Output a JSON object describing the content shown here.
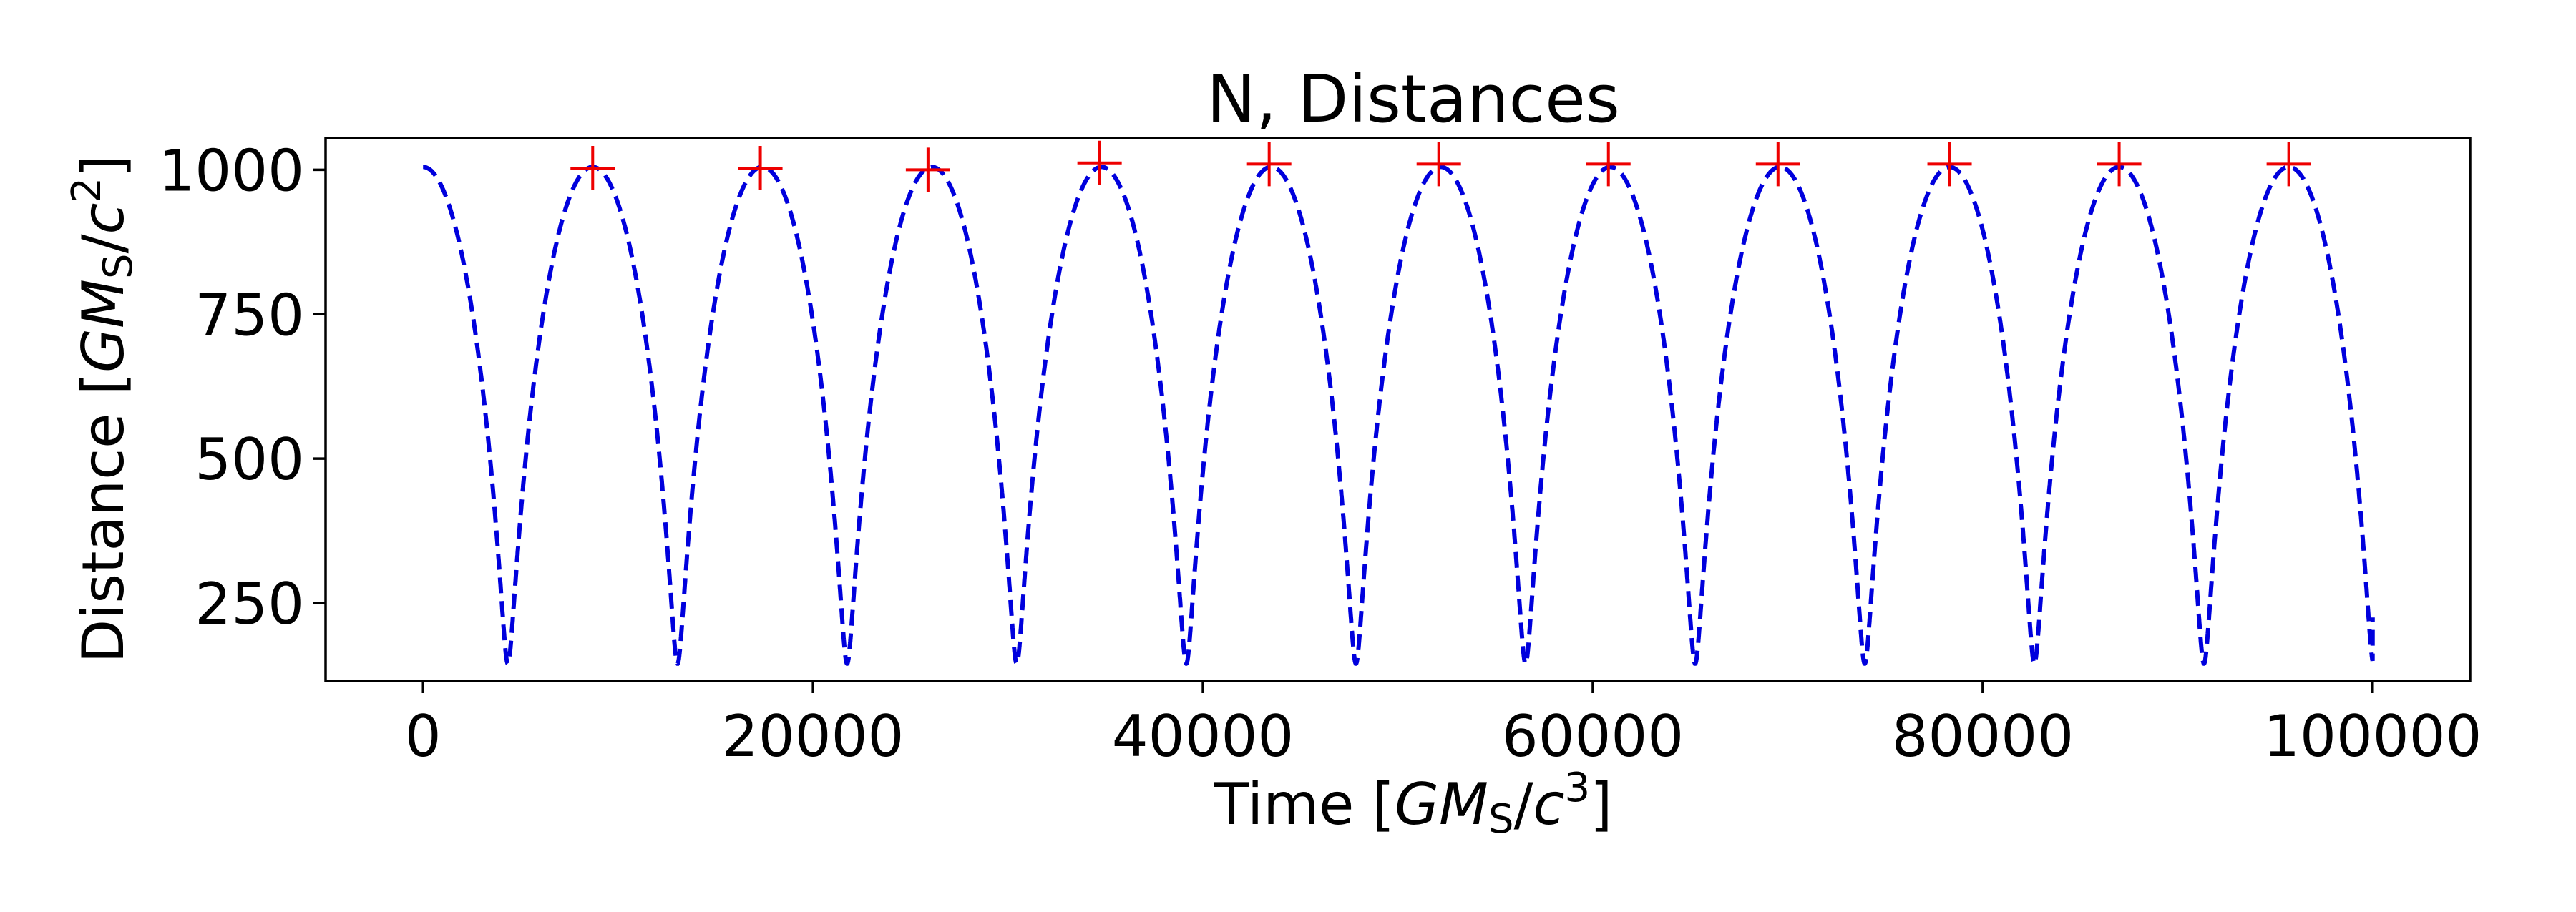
{
  "chart_data": {
    "type": "line",
    "title": "N, Distances",
    "xlabel": "Time [GM_S/c^3]",
    "xlabel_parts": {
      "pre": "Time [",
      "G": "G",
      "M": "M",
      "sub": "S",
      "slash": "/",
      "c": "c",
      "sup": "3",
      "post": "]"
    },
    "ylabel": "Distance [GM_S/c^2]",
    "ylabel_parts": {
      "pre": "Distance [",
      "G": "G",
      "M": "M",
      "sub": "S",
      "slash": "/",
      "c": "c",
      "sup": "2",
      "post": "]"
    },
    "xlim": [
      -5000,
      105000
    ],
    "ylim": [
      115,
      1055
    ],
    "xticks": [
      0,
      20000,
      40000,
      60000,
      80000,
      100000
    ],
    "xtick_labels": [
      "0",
      "20000",
      "40000",
      "60000",
      "80000",
      "100000"
    ],
    "yticks": [
      250,
      500,
      750,
      1000
    ],
    "ytick_labels": [
      "250",
      "500",
      "750",
      "1000"
    ],
    "grid": false,
    "series": [
      {
        "style": "dashed",
        "color": "#0000dd",
        "period": 8700,
        "t_start": 0,
        "t_end": 100000,
        "r_max": 1005,
        "r_min": 145,
        "apocenter_times": [
          0,
          8700,
          17400,
          26100,
          34800,
          43500,
          52200,
          60900,
          69600,
          78300,
          87000,
          95700
        ],
        "end_value": 225
      },
      {
        "style": "marker-plus",
        "color": "#ee0000",
        "x": [
          8700,
          17300,
          25900,
          34700,
          43400,
          52100,
          60800,
          69500,
          78300,
          87000,
          95700
        ],
        "y": [
          1003,
          1003,
          1000,
          1012,
          1010,
          1010,
          1010,
          1010,
          1010,
          1010,
          1010
        ]
      }
    ]
  }
}
